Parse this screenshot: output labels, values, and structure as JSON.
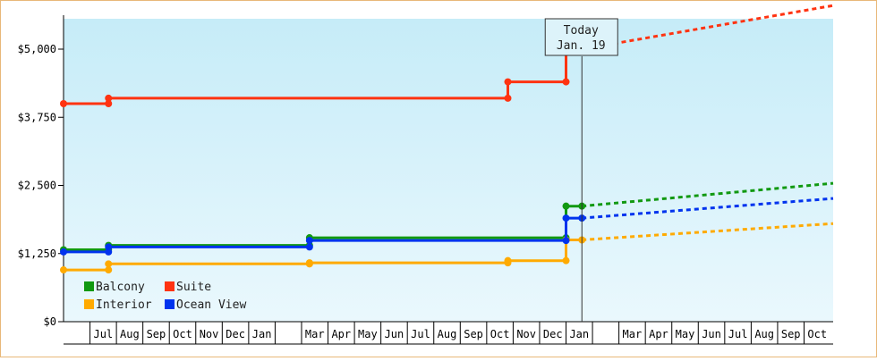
{
  "chart_data": {
    "type": "line",
    "step": true,
    "title": "",
    "xlabel": "",
    "ylabel": "",
    "ylim": [
      0,
      5000
    ],
    "y_ticks": [
      0,
      1250,
      2500,
      3750,
      5000
    ],
    "y_tick_labels": [
      "$0",
      "$1,250",
      "$2,500",
      "$3,750",
      "$5,000"
    ],
    "x_tick_labels": [
      "Jul",
      "Aug",
      "Sep",
      "Oct",
      "Nov",
      "Dec",
      "Jan",
      "",
      "Mar",
      "Apr",
      "May",
      "Jun",
      "Jul",
      "Aug",
      "Sep",
      "Oct",
      "Nov",
      "Dec",
      "Jan",
      "",
      "Mar",
      "Apr",
      "May",
      "Jun",
      "Jul",
      "Aug",
      "Sep",
      "Oct"
    ],
    "x_ticks_months": [
      1,
      2,
      3,
      4,
      5,
      6,
      7,
      8,
      9,
      10,
      11,
      12,
      13,
      14,
      15,
      16,
      17,
      18,
      19,
      20,
      21,
      22,
      23,
      24,
      25,
      26,
      27,
      28
    ],
    "x_domain_months": [
      0,
      29.1
    ],
    "today": {
      "label": "Today",
      "date": "Jan. 19",
      "month": 19.6
    },
    "grid": false,
    "legend": "bottom-left",
    "series": [
      {
        "name": "Balcony",
        "color": "#119911",
        "points": [
          [
            0,
            1320
          ],
          [
            1.7,
            1320
          ],
          [
            1.7,
            1400
          ],
          [
            9.3,
            1400
          ],
          [
            9.3,
            1540
          ],
          [
            19.0,
            1540
          ],
          [
            19.0,
            2120
          ],
          [
            19.6,
            2120
          ]
        ],
        "forecast": [
          [
            19.6,
            2120
          ],
          [
            29.1,
            2540
          ]
        ]
      },
      {
        "name": "Suite",
        "color": "#ff3311",
        "points": [
          [
            0,
            4000
          ],
          [
            1.7,
            4000
          ],
          [
            1.7,
            4100
          ],
          [
            16.8,
            4100
          ],
          [
            16.8,
            4400
          ],
          [
            19.0,
            4400
          ],
          [
            19.0,
            5000
          ],
          [
            19.6,
            5000
          ]
        ],
        "forecast": [
          [
            19.6,
            5000
          ],
          [
            29.1,
            5800
          ]
        ]
      },
      {
        "name": "Interior",
        "color": "#ffaa00",
        "points": [
          [
            0,
            950
          ],
          [
            1.7,
            950
          ],
          [
            1.7,
            1060
          ],
          [
            9.3,
            1060
          ],
          [
            9.3,
            1080
          ],
          [
            16.8,
            1080
          ],
          [
            16.8,
            1120
          ],
          [
            19.0,
            1120
          ],
          [
            19.0,
            1500
          ],
          [
            19.6,
            1500
          ]
        ],
        "forecast": [
          [
            19.6,
            1500
          ],
          [
            29.1,
            1800
          ]
        ]
      },
      {
        "name": "Ocean View",
        "color": "#0033ee",
        "points": [
          [
            0,
            1280
          ],
          [
            1.7,
            1280
          ],
          [
            1.7,
            1370
          ],
          [
            9.3,
            1370
          ],
          [
            9.3,
            1490
          ],
          [
            19.0,
            1490
          ],
          [
            19.0,
            1900
          ],
          [
            19.6,
            1900
          ]
        ],
        "forecast": [
          [
            19.6,
            1900
          ],
          [
            29.1,
            2260
          ]
        ]
      }
    ]
  }
}
